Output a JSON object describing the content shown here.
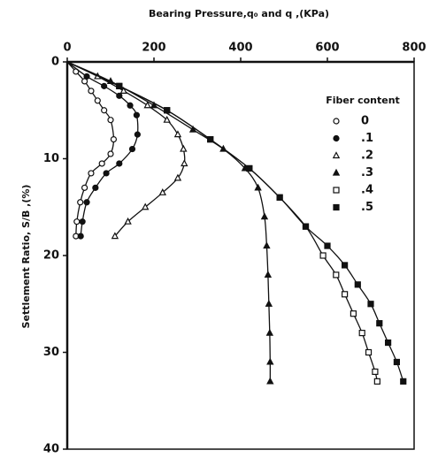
{
  "chart_data": {
    "type": "line",
    "x_label": "Bearing Pressure,q₀ and q ,(KPa)",
    "y_label": "Settlement Ratio, S/B ,(%)",
    "legend_title": "Fiber content",
    "legend_position": "upper right",
    "color": "#111111",
    "xaxis_position": "top",
    "y_inverted": true,
    "xlim": [
      0,
      800
    ],
    "xticks": [
      0,
      200,
      400,
      600,
      800
    ],
    "ylim": [
      0,
      40
    ],
    "yticks": [
      0,
      10,
      20,
      30,
      40
    ],
    "series": [
      {
        "name": "0",
        "marker": "circle-open",
        "x": [
          0,
          20,
          40,
          55,
          70,
          85,
          100,
          107,
          100,
          80,
          55,
          40,
          30,
          22,
          20
        ],
        "values": [
          0,
          1,
          2,
          3,
          4,
          5,
          6,
          8,
          9.5,
          10.5,
          11.5,
          13,
          14.5,
          16.5,
          18
        ]
      },
      {
        "name": ".1",
        "marker": "circle-filled",
        "x": [
          0,
          45,
          85,
          120,
          145,
          160,
          162,
          150,
          120,
          90,
          65,
          45,
          35,
          31
        ],
        "values": [
          0,
          1.5,
          2.5,
          3.5,
          4.5,
          5.5,
          7.5,
          9,
          10.5,
          11.5,
          13,
          14.5,
          16.5,
          18
        ]
      },
      {
        "name": ".2",
        "marker": "triangle-open",
        "x": [
          0,
          70,
          130,
          185,
          230,
          255,
          268,
          270,
          255,
          220,
          180,
          140,
          110
        ],
        "values": [
          0,
          1.5,
          3,
          4.5,
          6,
          7.5,
          9,
          10.5,
          12,
          13.5,
          15,
          16.5,
          18
        ]
      },
      {
        "name": ".3",
        "marker": "triangle-filled",
        "x": [
          0,
          100,
          200,
          290,
          360,
          410,
          440,
          455,
          460,
          463,
          465,
          467,
          468,
          468
        ],
        "values": [
          0,
          2,
          4.5,
          7,
          9,
          11,
          13,
          16,
          19,
          22,
          25,
          28,
          31,
          33
        ]
      },
      {
        "name": ".4",
        "marker": "square-open",
        "x": [
          0,
          120,
          230,
          330,
          420,
          490,
          550,
          590,
          620,
          640,
          660,
          680,
          695,
          710,
          715
        ],
        "values": [
          0,
          2.5,
          5,
          8,
          11,
          14,
          17,
          20,
          22,
          24,
          26,
          28,
          30,
          32,
          33
        ]
      },
      {
        "name": ".5",
        "marker": "square-filled",
        "x": [
          0,
          120,
          230,
          330,
          420,
          490,
          550,
          600,
          640,
          670,
          700,
          720,
          740,
          760,
          775
        ],
        "values": [
          0,
          2.5,
          5,
          8,
          11,
          14,
          17,
          19,
          21,
          23,
          25,
          27,
          29,
          31,
          33
        ]
      }
    ]
  }
}
